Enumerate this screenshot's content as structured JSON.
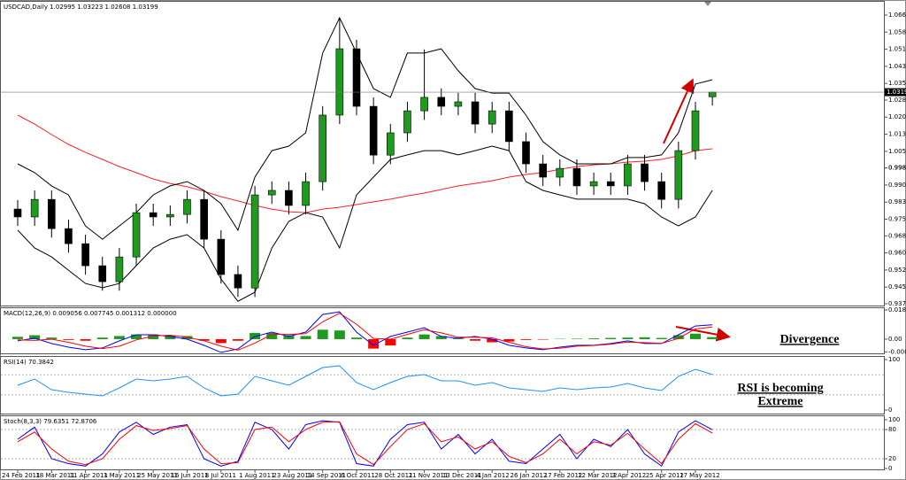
{
  "chart_data": [
    {
      "type": "candlestick",
      "title": "USDCAD,Daily  1.02995 1.03223 1.02608 1.03199",
      "categories": [
        "24 Feb 2011",
        null,
        "18 Mar 2011",
        null,
        "11 Apr 2011",
        null,
        "3 May 2011",
        null,
        "25 May 2011",
        null,
        "16 Jun 2011",
        null,
        "8 Jul 2011",
        null,
        "1 Aug 2011",
        null,
        "23 Aug 2011",
        null,
        "14 Sep 2011",
        null,
        "6 Oct 2011",
        null,
        "28 Oct 2011",
        null,
        "21 Nov 2011",
        null,
        "13 Dec 2011",
        null,
        "4 Jan 2012",
        null,
        "26 Jan 2012",
        null,
        "17 Feb 2012",
        null,
        "12 Mar 2012",
        null,
        "3 Apr 2012",
        null,
        "25 Apr 2012",
        null,
        "17 May 2012",
        null
      ],
      "open": [
        0.98,
        0.9765,
        0.9843,
        0.9713,
        0.9646,
        0.9548,
        0.9477,
        0.9587,
        0.9784,
        0.9765,
        0.9776,
        0.9843,
        0.9666,
        0.9509,
        0.9449,
        0.9863,
        0.9883,
        0.9816,
        0.9922,
        1.0218,
        1.0513,
        1.0257,
        1.004,
        1.0139,
        1.0237,
        1.0297,
        1.0257,
        1.0277,
        1.0178,
        1.0237,
        1.01,
        1.0001,
        0.9942,
        0.9981,
        0.9903,
        0.9922,
        0.9903,
        1.0001,
        0.9922,
        0.9843,
        1.006,
        1.02995
      ],
      "high": [
        0.984,
        0.9883,
        0.9883,
        0.9753,
        0.9686,
        0.9588,
        0.9627,
        0.9824,
        0.9824,
        0.9816,
        0.9883,
        0.9883,
        0.9706,
        0.9549,
        0.9903,
        0.9923,
        0.9923,
        0.9962,
        1.0258,
        1.065,
        1.0553,
        1.0297,
        1.0179,
        1.0277,
        1.051,
        1.0337,
        1.0317,
        1.0317,
        1.0277,
        1.0277,
        1.014,
        1.0041,
        1.0021,
        1.0021,
        0.9962,
        0.9962,
        1.0041,
        1.0041,
        0.9962,
        1.01,
        1.0277,
        1.03223
      ],
      "low": [
        0.9725,
        0.9725,
        0.9673,
        0.9606,
        0.9508,
        0.9437,
        0.9437,
        0.9547,
        0.9725,
        0.9725,
        0.9736,
        0.9626,
        0.9469,
        0.9409,
        0.9409,
        0.9823,
        0.9776,
        0.9776,
        0.9882,
        1.0178,
        1.0217,
        1.0,
        1.0,
        1.0099,
        1.0197,
        1.0217,
        1.0217,
        1.0138,
        1.0138,
        1.006,
        0.9961,
        0.9902,
        0.9902,
        0.9863,
        0.9863,
        0.9863,
        0.9863,
        0.9882,
        0.9803,
        0.9803,
        1.002,
        1.02608
      ],
      "close": [
        0.9765,
        0.9843,
        0.9713,
        0.9646,
        0.9548,
        0.9477,
        0.9587,
        0.9784,
        0.9765,
        0.9776,
        0.9843,
        0.9666,
        0.9509,
        0.9449,
        0.9863,
        0.9883,
        0.9816,
        0.9922,
        1.0218,
        1.0513,
        1.0257,
        1.004,
        1.0139,
        1.0237,
        1.0297,
        1.0257,
        1.0277,
        1.0178,
        1.0237,
        1.01,
        1.0001,
        0.9942,
        0.9981,
        0.9903,
        0.9922,
        0.9903,
        1.0001,
        0.9922,
        0.9843,
        1.006,
        1.0237,
        1.03199
      ],
      "up_color": "#1f9a1f",
      "down_color": "#000000",
      "overlays": [
        {
          "color": "#ff2020",
          "values": [
            1.0218,
            1.0178,
            1.0131,
            1.0088,
            1.0052,
            1.0021,
            0.9989,
            0.9962,
            0.9934,
            0.9914,
            0.9899,
            0.9879,
            0.9855,
            0.9836,
            0.9816,
            0.98,
            0.9788,
            0.9784,
            0.98,
            0.9808,
            0.982,
            0.9832,
            0.9844,
            0.9859,
            0.9871,
            0.9887,
            0.9903,
            0.9914,
            0.9926,
            0.9942,
            0.9954,
            0.9962,
            0.9977,
            0.9989,
            0.9997,
            1.0001,
            1.0009,
            1.0013,
            1.0021,
            1.0037,
            1.006,
            1.0068
          ]
        },
        {
          "color": "#000000",
          "values": [
            1.0001,
            0.9962,
            0.9903,
            0.9863,
            0.9725,
            0.9666,
            0.9725,
            0.9784,
            0.9863,
            0.9903,
            0.9922,
            0.9883,
            0.9824,
            0.9706,
            0.9942,
            1.006,
            1.008,
            1.0139,
            1.0494,
            1.0651,
            1.0494,
            1.0336,
            1.0297,
            1.0494,
            1.0494,
            1.0513,
            1.0415,
            1.0336,
            1.0316,
            1.0316,
            1.0218,
            1.01,
            1.0041,
            1.0001,
            1.0001,
            1.0001,
            1.0029,
            1.0029,
            1.0041,
            1.0139,
            1.0356,
            1.0375
          ]
        },
        {
          "color": "#000000",
          "values": [
            0.9706,
            0.9627,
            0.9587,
            0.9528,
            0.9469,
            0.945,
            0.9469,
            0.9548,
            0.9627,
            0.9666,
            0.9686,
            0.9627,
            0.9489,
            0.939,
            0.943,
            0.9627,
            0.9745,
            0.9784,
            0.9765,
            0.9627,
            0.9863,
            0.9942,
            1.0021,
            1.0041,
            1.006,
            1.006,
            1.0041,
            1.006,
            1.008,
            1.006,
            0.9922,
            0.9883,
            0.9863,
            0.9844,
            0.9844,
            0.9844,
            0.9844,
            0.9824,
            0.9765,
            0.9725,
            0.9765,
            0.9883
          ]
        }
      ],
      "ylim": [
        0.9367,
        1.0722
      ],
      "yticks": [
        {
          "value": 1.0663,
          "label": "1.06630"
        },
        {
          "value": 1.0587,
          "label": "1.05870"
        },
        {
          "value": 1.0511,
          "label": "1.05110"
        },
        {
          "value": 1.0435,
          "label": "1.04350"
        },
        {
          "value": 1.0359,
          "label": "1.03590"
        },
        {
          "value": 1.0285,
          "label": "1.02850"
        },
        {
          "value": 1.0209,
          "label": "1.02090"
        },
        {
          "value": 1.0133,
          "label": "1.01330"
        },
        {
          "value": 1.0057,
          "label": "1.00570"
        },
        0.9983,
        {
          "value": 0.9983,
          "label": "0.99830"
        },
        {
          "value": 0.9907,
          "label": "0.99070"
        },
        {
          "value": 0.9831,
          "label": "0.98310"
        },
        {
          "value": 0.9755,
          "label": "0.97550"
        },
        {
          "value": 0.9681,
          "label": "0.96810"
        },
        {
          "value": 0.9605,
          "label": "0.96050"
        },
        {
          "value": 0.9529,
          "label": "0.95290"
        },
        {
          "value": 0.9453,
          "label": "0.94530"
        },
        {
          "value": 0.9379,
          "label": "0.93790"
        }
      ]
    },
    {
      "type": "macd",
      "title": "MACD(12,26,9) 0.009056 0.007745 0.001312 0.000000",
      "histogram": {
        "up_color": "#1f9a1f",
        "down_color": "#ff0000",
        "values": [
          0.0015,
          0.0025,
          0.001,
          -0.0005,
          -0.001,
          0.001,
          0.002,
          0.003,
          0.003,
          0.0025,
          0.002,
          -0.001,
          -0.0025,
          -0.001,
          0.004,
          0.004,
          0.0025,
          0.002,
          0.006,
          0.0055,
          0.001,
          -0.006,
          -0.004,
          0.001,
          0.003,
          0.002,
          0.0005,
          -0.001,
          -0.002,
          -0.0015,
          -0.0005,
          -0.0003,
          0.0002,
          0.0003,
          0.0005,
          0.0008,
          0.001,
          0.0012,
          0.0008,
          0.0025,
          0.0035,
          0.0013
        ]
      },
      "series": [
        {
          "color": "#0000ff",
          "values": [
            -0.0011,
            0.0006,
            -0.0028,
            -0.0051,
            -0.0067,
            -0.0056,
            -0.0011,
            0.0028,
            0.0028,
            0.0017,
            0.0,
            -0.0039,
            -0.0084,
            -0.0062,
            0.0017,
            0.0045,
            0.0017,
            0.0045,
            0.0157,
            0.0174,
            0.0045,
            -0.0039,
            0.0017,
            0.0045,
            0.0073,
            0.0017,
            0.0006,
            0.0017,
            0.0,
            -0.0039,
            -0.0056,
            -0.0067,
            -0.0051,
            -0.0039,
            -0.0039,
            -0.0028,
            -0.0011,
            -0.0028,
            -0.0028,
            0.0028,
            0.0084,
            0.0091
          ]
        },
        {
          "color": "#ff0000",
          "values": [
            -0.0005,
            -0.0008,
            0.0,
            -0.002,
            -0.0045,
            -0.006,
            -0.0045,
            -0.0005,
            0.002,
            0.0025,
            0.0012,
            -0.001,
            -0.0045,
            -0.007,
            -0.0025,
            0.003,
            0.003,
            0.0035,
            0.011,
            0.0165,
            0.0095,
            0.0005,
            0.0,
            0.003,
            0.006,
            0.004,
            0.0012,
            0.0012,
            0.0008,
            -0.002,
            -0.0048,
            -0.0062,
            -0.0058,
            -0.0045,
            -0.004,
            -0.0032,
            -0.0018,
            -0.0022,
            -0.0027,
            0.0005,
            0.0065,
            0.0077
          ]
        }
      ],
      "ylim": [
        -0.0096,
        0.0197
      ],
      "yticks": [
        0.018547,
        {
          "value": 0,
          "label": "0.00"
        },
        -0.00814
      ],
      "annotations": [
        "Divergence"
      ]
    },
    {
      "type": "rsi",
      "title": "RSI(14) 70.3842",
      "color": "#1e90ff",
      "values": [
        49.1,
        61.4,
        40.4,
        35.1,
        31.6,
        28.1,
        43.9,
        61.4,
        57.9,
        61.4,
        66.7,
        43.9,
        28.1,
        31.6,
        66.7,
        57.9,
        49.1,
        66.7,
        84.2,
        87.7,
        54.4,
        40.4,
        54.4,
        66.7,
        70.2,
        57.9,
        57.9,
        49.1,
        54.4,
        43.9,
        40.4,
        36.8,
        43.9,
        40.4,
        43.9,
        45.6,
        52.6,
        43.9,
        38.6,
        66.7,
        80.7,
        70.3842
      ],
      "ylim": [
        -8.8,
        105.3
      ],
      "yticks": [
        100,
        0
      ],
      "levels": [
        70,
        30
      ],
      "annotations": [
        "RSI is becoming",
        "Extreme"
      ]
    },
    {
      "type": "stoch",
      "title": "Stoch(8,3,3) 79.6351 72.8706",
      "series": [
        {
          "color": "#0000ff",
          "values": [
            60,
            85,
            20,
            10,
            5,
            30,
            75,
            95,
            70,
            85,
            90,
            20,
            5,
            15,
            95,
            80,
            40,
            90,
            98,
            95,
            10,
            5,
            60,
            90,
            95,
            40,
            70,
            30,
            60,
            15,
            10,
            40,
            70,
            20,
            60,
            45,
            80,
            30,
            5,
            75,
            98,
            79.6351
          ]
        },
        {
          "color": "#ff0000",
          "values": [
            55,
            75,
            40,
            15,
            8,
            20,
            60,
            88,
            78,
            82,
            88,
            40,
            10,
            12,
            80,
            85,
            55,
            80,
            95,
            96,
            30,
            8,
            45,
            80,
            92,
            55,
            65,
            40,
            55,
            25,
            12,
            30,
            60,
            30,
            55,
            48,
            72,
            40,
            10,
            60,
            92,
            72.8706
          ]
        }
      ],
      "ylim": [
        -3.6,
        107.3
      ],
      "yticks": [
        100,
        80,
        20,
        0
      ],
      "levels": [
        80,
        20
      ]
    }
  ]
}
